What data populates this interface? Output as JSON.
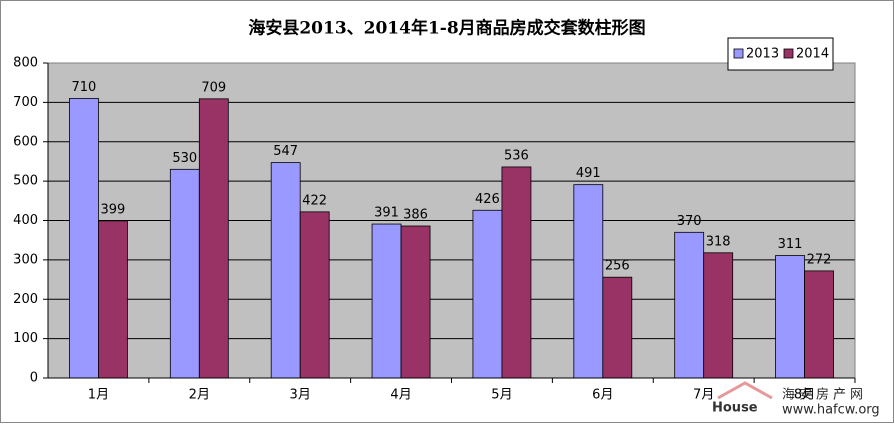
{
  "chart_data": {
    "type": "bar",
    "title": "海安县2013、2014年1-8月商品房成交套数柱形图",
    "categories": [
      "1月",
      "2月",
      "3月",
      "4月",
      "5月",
      "6月",
      "7月",
      "8月"
    ],
    "series": [
      {
        "name": "2013",
        "color": "#9999ff",
        "values": [
          710,
          530,
          547,
          391,
          426,
          491,
          370,
          311
        ]
      },
      {
        "name": "2014",
        "color": "#993366",
        "values": [
          399,
          709,
          422,
          386,
          536,
          256,
          318,
          272
        ]
      }
    ],
    "ylim": [
      0,
      800
    ],
    "yticks": [
      0,
      100,
      200,
      300,
      400,
      500,
      600,
      700,
      800
    ],
    "grid": true,
    "legend": "top-right",
    "show_values": true
  },
  "watermark": {
    "brand": "House",
    "name": "海安房产网",
    "url": "www.hafcw.org"
  }
}
